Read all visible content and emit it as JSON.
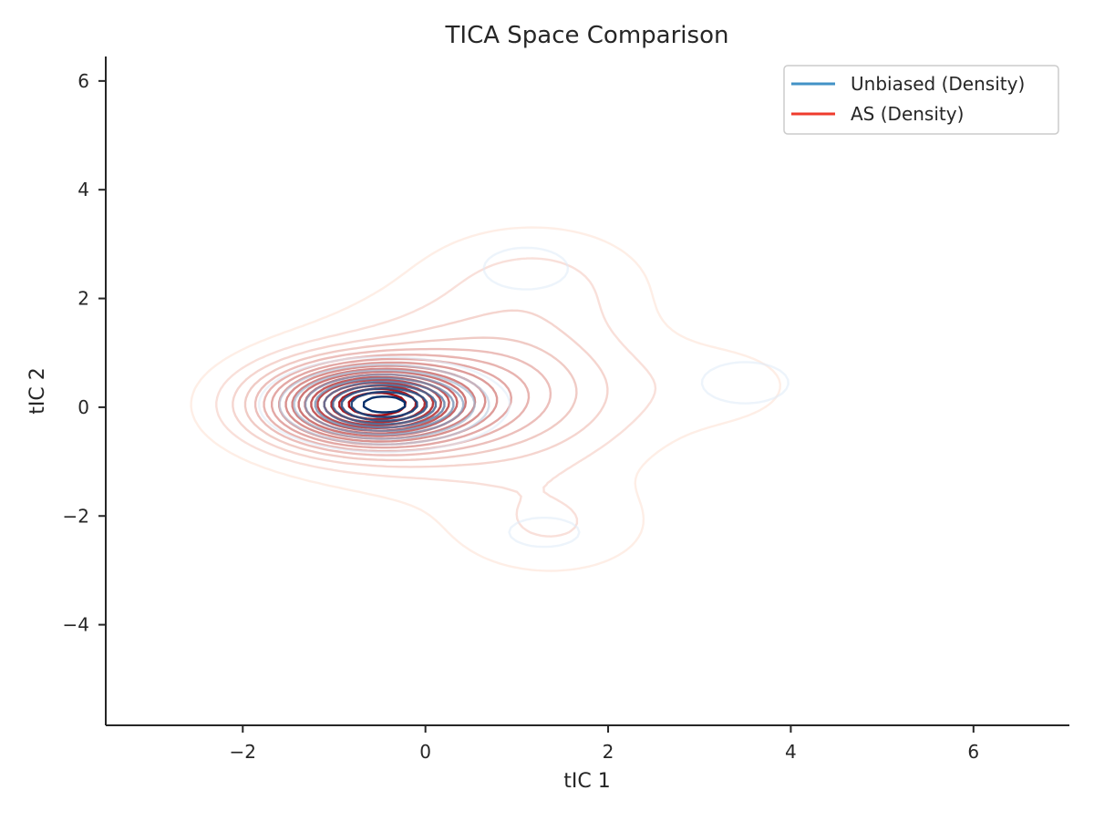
{
  "chart_data": {
    "type": "density-contour",
    "title": "TICA Space Comparison",
    "xlabel": "tIC 1",
    "ylabel": "tIC 2",
    "xlim": [
      -3.5,
      7.05
    ],
    "ylim": [
      -5.85,
      6.45
    ],
    "xticks": [
      -2,
      0,
      2,
      4,
      6
    ],
    "yticks": [
      -4,
      -2,
      0,
      2,
      4,
      6
    ],
    "xtick_labels": [
      "−2",
      "0",
      "2",
      "4",
      "6"
    ],
    "ytick_labels": [
      "−4",
      "−2",
      "0",
      "2",
      "4",
      "6"
    ],
    "grid": false,
    "legend_position": "upper right",
    "series": [
      {
        "name": "Unbiased (Density)",
        "legend_color": "#4292c6",
        "color_light": "#deebf7",
        "color_dark": "#08306b",
        "components": [
          {
            "mean": [
              -0.45,
              0.05
            ],
            "std": [
              0.55,
              0.35
            ],
            "weight": 1.0
          },
          {
            "mean": [
              1.1,
              2.55
            ],
            "std": [
              0.6,
              0.5
            ],
            "weight": 0.06
          },
          {
            "mean": [
              3.5,
              0.45
            ],
            "std": [
              0.5,
              0.4
            ],
            "weight": 0.07
          },
          {
            "mean": [
              1.3,
              -2.3
            ],
            "std": [
              0.5,
              0.35
            ],
            "weight": 0.06
          }
        ],
        "levels": 10
      },
      {
        "name": "AS (Density)",
        "legend_color": "#ef3b2c",
        "color_light": "#fee0d2",
        "color_dark": "#a50f15",
        "components": [
          {
            "mean": [
              -0.6,
              0.05
            ],
            "std": [
              0.7,
              0.48
            ],
            "weight": 1.0
          },
          {
            "mean": [
              0.7,
              0.3
            ],
            "std": [
              0.95,
              0.85
            ],
            "weight": 0.22
          },
          {
            "mean": [
              1.2,
              2.3
            ],
            "std": [
              0.8,
              0.7
            ],
            "weight": 0.07
          },
          {
            "mean": [
              1.4,
              -2.2
            ],
            "std": [
              0.7,
              0.6
            ],
            "weight": 0.06
          },
          {
            "mean": [
              3.3,
              0.4
            ],
            "std": [
              0.7,
              0.6
            ],
            "weight": 0.035
          },
          {
            "mean": [
              0.2,
              0.0
            ],
            "std": [
              1.6,
              1.5
            ],
            "weight": 0.035
          }
        ],
        "levels": 18
      }
    ]
  }
}
